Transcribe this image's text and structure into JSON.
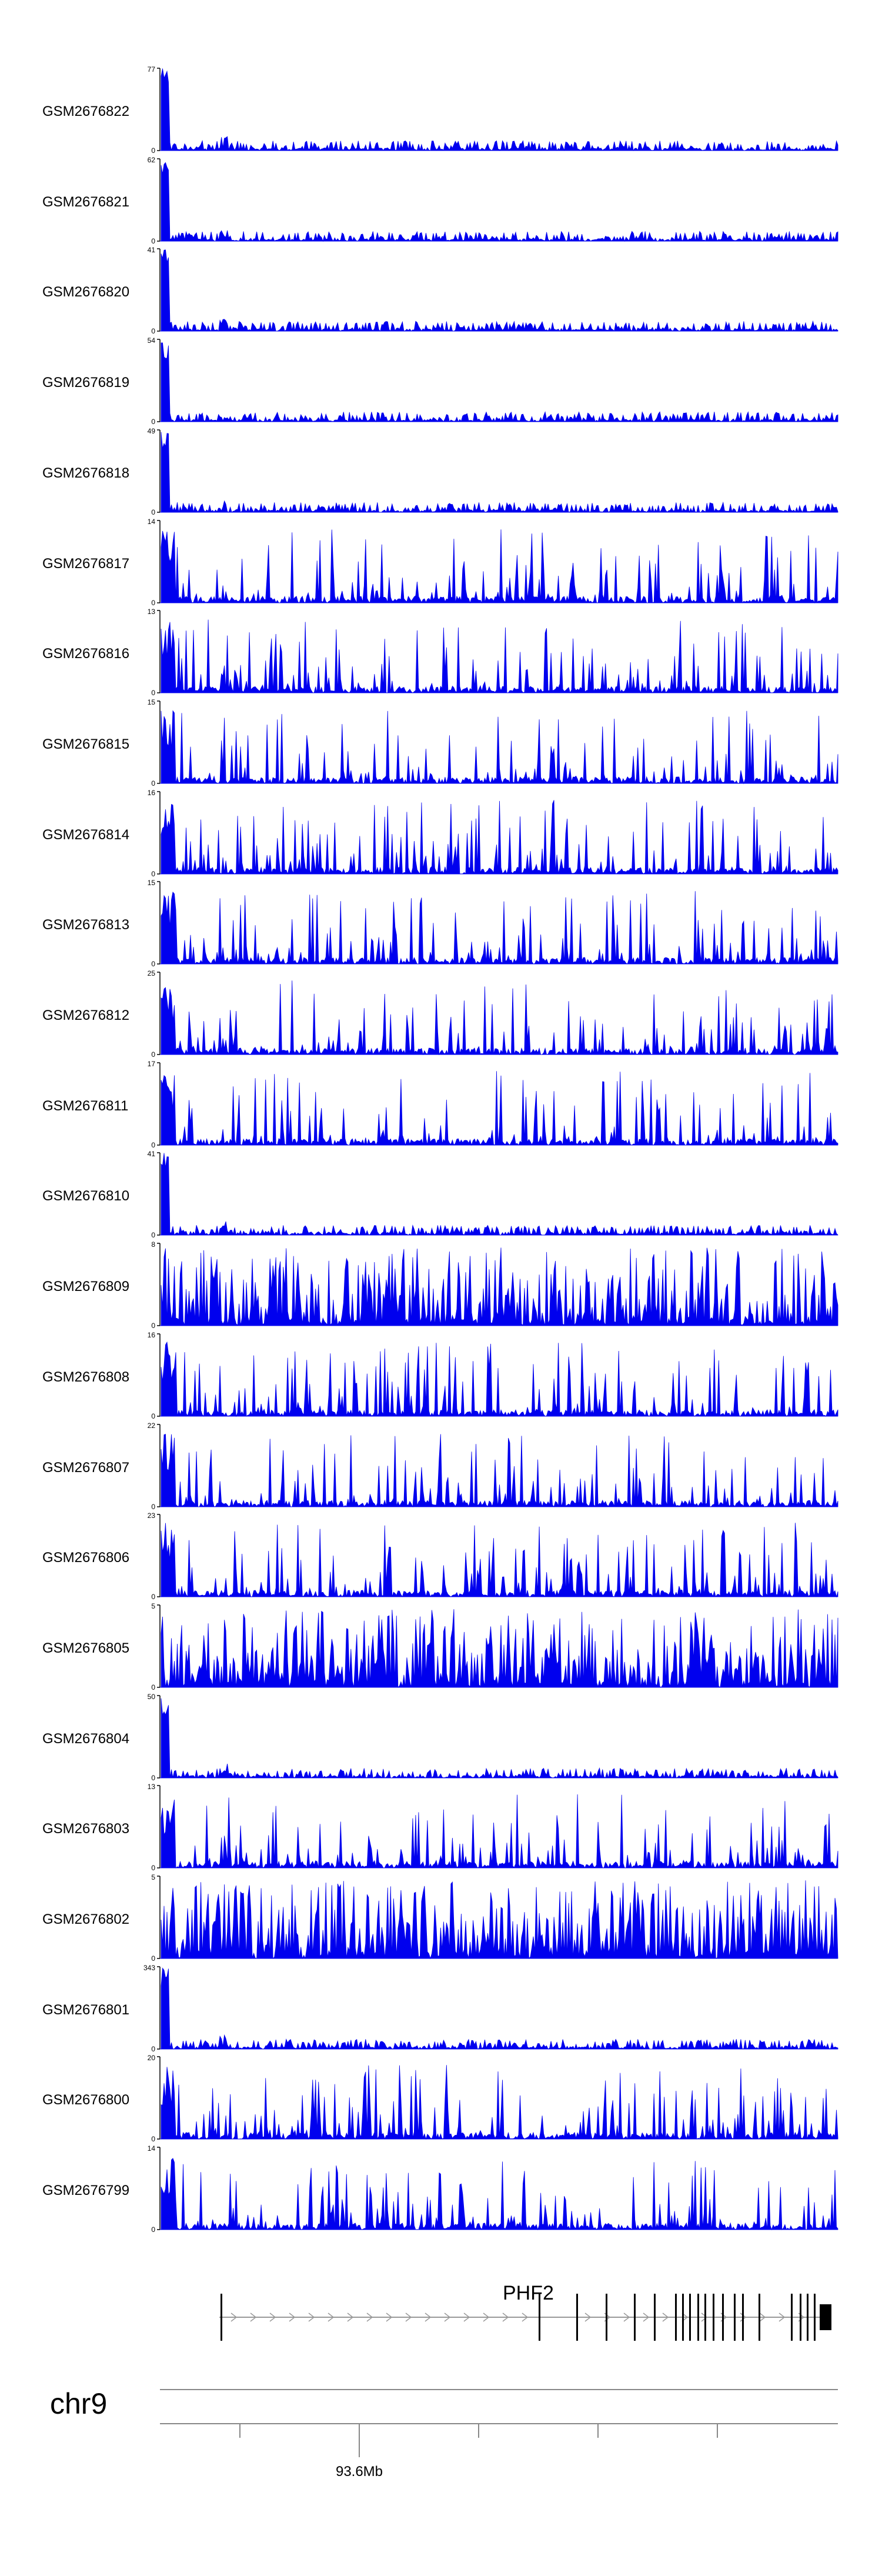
{
  "chart_data": {
    "type": "area",
    "title": "",
    "xlabel": "",
    "ylabel": "",
    "series": [
      {
        "name": "GSM2676822",
        "ymax": 77,
        "ymin": 0
      },
      {
        "name": "GSM2676821",
        "ymax": 62,
        "ymin": 0
      },
      {
        "name": "GSM2676820",
        "ymax": 41,
        "ymin": 0
      },
      {
        "name": "GSM2676819",
        "ymax": 54,
        "ymin": 0
      },
      {
        "name": "GSM2676818",
        "ymax": 49,
        "ymin": 0
      },
      {
        "name": "GSM2676817",
        "ymax": 14,
        "ymin": 0
      },
      {
        "name": "GSM2676816",
        "ymax": 13,
        "ymin": 0
      },
      {
        "name": "GSM2676815",
        "ymax": 15,
        "ymin": 0
      },
      {
        "name": "GSM2676814",
        "ymax": 16,
        "ymin": 0
      },
      {
        "name": "GSM2676813",
        "ymax": 15,
        "ymin": 0
      },
      {
        "name": "GSM2676812",
        "ymax": 25,
        "ymin": 0
      },
      {
        "name": "GSM2676811",
        "ymax": 17,
        "ymin": 0
      },
      {
        "name": "GSM2676810",
        "ymax": 41,
        "ymin": 0
      },
      {
        "name": "GSM2676809",
        "ymax": 8,
        "ymin": 0
      },
      {
        "name": "GSM2676808",
        "ymax": 16,
        "ymin": 0
      },
      {
        "name": "GSM2676807",
        "ymax": 22,
        "ymin": 0
      },
      {
        "name": "GSM2676806",
        "ymax": 23,
        "ymin": 0
      },
      {
        "name": "GSM2676805",
        "ymax": 5,
        "ymin": 0
      },
      {
        "name": "GSM2676804",
        "ymax": 50,
        "ymin": 0
      },
      {
        "name": "GSM2676803",
        "ymax": 13,
        "ymin": 0
      },
      {
        "name": "GSM2676802",
        "ymax": 5,
        "ymin": 0
      },
      {
        "name": "GSM2676801",
        "ymax": 343,
        "ymin": 0
      },
      {
        "name": "GSM2676800",
        "ymax": 20,
        "ymin": 0
      },
      {
        "name": "GSM2676799",
        "ymax": 14,
        "ymin": 0
      }
    ],
    "gene": {
      "name": "PHF2"
    },
    "chromosome": "chr9",
    "x_ticks": [
      "",
      "93.6Mb",
      "",
      "",
      ""
    ],
    "colors": {
      "signal": "#0000ee",
      "axis": "#000000",
      "gene": "#000000"
    }
  }
}
